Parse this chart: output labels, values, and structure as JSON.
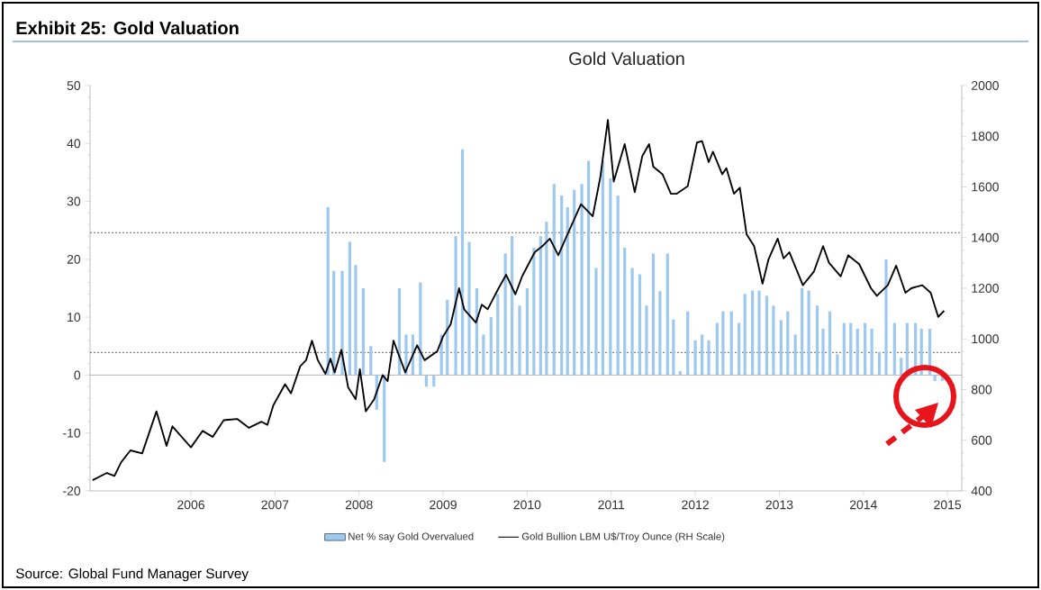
{
  "chart_data": {
    "type": "bar",
    "title": "Exhibit 25: Gold Valuation",
    "subtitle": "Gold Valuation",
    "annotations": [
      "Source: Global Fund Manager Survey"
    ],
    "xlim": [
      2004.8,
      2015.17
    ],
    "xticks": [
      2006,
      2007,
      2008,
      2009,
      2010,
      2011,
      2012,
      2013,
      2014,
      2015
    ],
    "ylim": [
      -20,
      50
    ],
    "yticks": [
      -20,
      -10,
      0,
      10,
      20,
      30,
      40,
      50
    ],
    "y2lim": [
      400,
      2000
    ],
    "y2ticks": [
      400,
      600,
      800,
      1000,
      1200,
      1400,
      1600,
      1800,
      2000
    ],
    "legend": "bottom",
    "ref_lines": [
      {
        "axis": "y",
        "value": 24.6,
        "line_style": "dotted",
        "color": "#404040"
      },
      {
        "axis": "y",
        "value": 3.9,
        "line_style": "dotted",
        "color": "#404040"
      },
      {
        "axis": "y",
        "value": 0,
        "line_style": "solid",
        "color": "#a0a0a0"
      }
    ],
    "series": [
      {
        "name": "Net % say Gold Overvalued",
        "color": "#9dc8f0",
        "x": [
          2007.63,
          2007.7,
          2007.8,
          2007.89,
          2007.96,
          2008.05,
          2008.14,
          2008.21,
          2008.3,
          2008.48,
          2008.56,
          2008.64,
          2008.73,
          2008.8,
          2008.89,
          2008.98,
          2009.05,
          2009.15,
          2009.23,
          2009.31,
          2009.4,
          2009.48,
          2009.57,
          2009.65,
          2009.74,
          2009.82,
          2009.91,
          2010.0,
          2010.08,
          2010.16,
          2010.23,
          2010.32,
          2010.41,
          2010.48,
          2010.56,
          2010.65,
          2010.73,
          2010.82,
          2010.9,
          2010.99,
          2011.08,
          2011.16,
          2011.25,
          2011.34,
          2011.42,
          2011.5,
          2011.58,
          2011.67,
          2011.74,
          2011.82,
          2011.91,
          2012.0,
          2012.08,
          2012.16,
          2012.26,
          2012.33,
          2012.43,
          2012.52,
          2012.59,
          2012.68,
          2012.76,
          2012.85,
          2012.93,
          2013.02,
          2013.1,
          2013.19,
          2013.27,
          2013.35,
          2013.45,
          2013.52,
          2013.6,
          2013.69,
          2013.77,
          2013.85,
          2013.93,
          2014.02,
          2014.1,
          2014.19,
          2014.27,
          2014.37,
          2014.45,
          2014.52,
          2014.62,
          2014.69,
          2014.79,
          2014.85,
          2014.94
        ],
        "values": [
          29,
          18,
          18,
          23,
          19,
          15,
          5,
          -6,
          -15,
          15,
          7,
          7,
          16,
          -2,
          -2,
          7,
          13,
          24,
          39,
          23,
          15,
          7,
          10,
          14,
          21,
          24,
          12,
          15,
          22,
          24,
          26.5,
          33,
          31,
          29,
          32,
          33,
          37,
          18.5,
          37,
          34,
          31,
          22,
          18.5,
          17.4,
          12,
          21,
          14.5,
          21,
          9.6,
          0.7,
          11,
          6,
          7,
          6,
          9,
          11,
          11,
          9,
          14,
          14.6,
          14.6,
          13.7,
          12,
          9.5,
          11,
          7,
          15,
          14.6,
          12,
          8,
          11,
          3.6,
          9,
          9,
          8,
          9,
          8,
          4,
          20,
          9,
          3,
          9,
          9,
          8,
          8,
          -1,
          -1
        ]
      },
      {
        "name": "Gold Bullion LBM U$/Troy Ounce (RH Scale)",
        "type": "line",
        "axis": "y2",
        "color": "#000000",
        "x": [
          2004.83,
          2005.0,
          2005.09,
          2005.17,
          2005.28,
          2005.42,
          2005.59,
          2005.71,
          2005.78,
          2006.0,
          2006.14,
          2006.26,
          2006.39,
          2006.55,
          2006.69,
          2006.84,
          2006.91,
          2006.98,
          2007.12,
          2007.19,
          2007.3,
          2007.37,
          2007.44,
          2007.51,
          2007.6,
          2007.66,
          2007.71,
          2007.79,
          2007.87,
          2007.96,
          2008.01,
          2008.08,
          2008.18,
          2008.28,
          2008.34,
          2008.41,
          2008.55,
          2008.69,
          2008.78,
          2008.93,
          2009.0,
          2009.09,
          2009.19,
          2009.25,
          2009.39,
          2009.46,
          2009.53,
          2009.66,
          2009.75,
          2009.86,
          2009.94,
          2010.09,
          2010.18,
          2010.27,
          2010.37,
          2010.48,
          2010.64,
          2010.78,
          2010.87,
          2010.96,
          2011.03,
          2011.16,
          2011.28,
          2011.37,
          2011.45,
          2011.5,
          2011.61,
          2011.71,
          2011.78,
          2011.91,
          2012.02,
          2012.08,
          2012.16,
          2012.21,
          2012.32,
          2012.37,
          2012.46,
          2012.53,
          2012.61,
          2012.7,
          2012.8,
          2012.87,
          2012.98,
          2013.05,
          2013.12,
          2013.28,
          2013.41,
          2013.52,
          2013.59,
          2013.73,
          2013.82,
          2013.95,
          2014.09,
          2014.16,
          2014.29,
          2014.39,
          2014.5,
          2014.57,
          2014.7,
          2014.8,
          2014.89,
          2014.96
        ],
        "values": [
          442,
          471,
          459,
          513,
          560,
          548,
          714,
          578,
          655,
          572,
          637,
          613,
          679,
          684,
          649,
          673,
          661,
          738,
          821,
          785,
          892,
          916,
          993,
          916,
          862,
          922,
          868,
          957,
          809,
          762,
          880,
          714,
          762,
          857,
          833,
          993,
          868,
          975,
          916,
          951,
          1010,
          1058,
          1200,
          1117,
          1064,
          1135,
          1117,
          1200,
          1253,
          1176,
          1247,
          1342,
          1366,
          1396,
          1330,
          1413,
          1532,
          1484,
          1638,
          1864,
          1621,
          1769,
          1579,
          1722,
          1769,
          1680,
          1650,
          1573,
          1573,
          1603,
          1775,
          1781,
          1698,
          1739,
          1650,
          1674,
          1573,
          1597,
          1413,
          1366,
          1218,
          1313,
          1396,
          1318,
          1342,
          1212,
          1265,
          1366,
          1301,
          1247,
          1330,
          1295,
          1200,
          1170,
          1212,
          1289,
          1182,
          1200,
          1212,
          1182,
          1087,
          1111
        ]
      }
    ]
  }
}
